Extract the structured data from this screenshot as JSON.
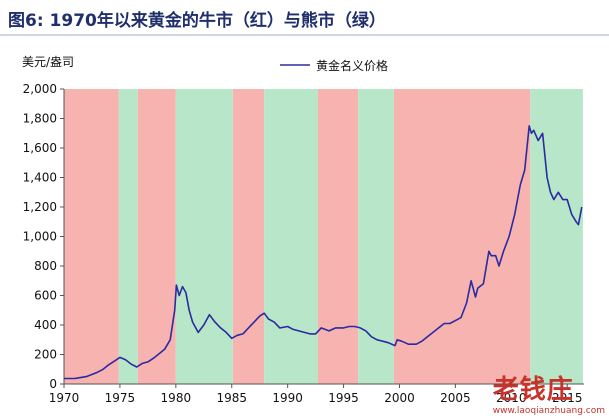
{
  "figure_title": "图6: 1970年以来黄金的牛市（红）与熊市（绿）",
  "watermark": {
    "name": "老钱庄",
    "url": "www.laoqianzhuang.com"
  },
  "colors": {
    "bull": "#f7b3b0",
    "bear": "#b8e6c9",
    "line": "#2b2ba0"
  },
  "chart_data": {
    "type": "line",
    "title": "",
    "ylabel": "美元/盎司",
    "xlabel": "",
    "xlim": [
      1970,
      2016.5
    ],
    "ylim": [
      0,
      2000
    ],
    "yticks": [
      "0",
      "200",
      "400",
      "600",
      "800",
      "1,000",
      "1,200",
      "1,400",
      "1,600",
      "1,800",
      "2,000"
    ],
    "xticks": [
      "1970",
      "1975",
      "1980",
      "1985",
      "1990",
      "1995",
      "2000",
      "2005",
      "2010",
      "2015"
    ],
    "legend": "top-center",
    "series": [
      {
        "name": "黄金名义价格",
        "x": [
          1970.0,
          1971.0,
          1972.0,
          1973.0,
          1973.5,
          1974.0,
          1974.6,
          1975.0,
          1975.5,
          1976.0,
          1976.5,
          1977.0,
          1977.5,
          1978.0,
          1978.5,
          1979.0,
          1979.5,
          1979.9,
          1980.05,
          1980.3,
          1980.6,
          1980.9,
          1981.2,
          1981.5,
          1982.0,
          1982.5,
          1983.0,
          1983.5,
          1984.0,
          1984.5,
          1985.0,
          1985.5,
          1986.0,
          1986.5,
          1987.0,
          1987.5,
          1987.9,
          1988.3,
          1988.8,
          1989.3,
          1990.0,
          1990.5,
          1991.0,
          1991.5,
          1992.0,
          1992.5,
          1993.0,
          1993.7,
          1994.3,
          1995.0,
          1995.5,
          1996.0,
          1996.5,
          1997.0,
          1997.5,
          1998.0,
          1998.5,
          1999.0,
          1999.6,
          1999.8,
          2000.2,
          2000.8,
          2001.5,
          2002.0,
          2002.5,
          2003.0,
          2003.5,
          2004.0,
          2004.5,
          2005.0,
          2005.5,
          2006.0,
          2006.4,
          2006.8,
          2007.0,
          2007.5,
          2008.0,
          2008.2,
          2008.6,
          2008.9,
          2009.3,
          2009.8,
          2010.3,
          2010.8,
          2011.2,
          2011.6,
          2011.8,
          2012.0,
          2012.4,
          2012.8,
          2013.2,
          2013.5,
          2013.8,
          2014.2,
          2014.6,
          2015.0,
          2015.4,
          2015.8,
          2016.0,
          2016.3
        ],
        "values": [
          37,
          38,
          50,
          80,
          100,
          130,
          160,
          180,
          165,
          135,
          115,
          140,
          150,
          175,
          205,
          235,
          300,
          500,
          670,
          600,
          660,
          620,
          500,
          420,
          350,
          400,
          470,
          420,
          380,
          350,
          310,
          330,
          340,
          380,
          420,
          460,
          480,
          440,
          420,
          380,
          390,
          370,
          360,
          350,
          340,
          340,
          380,
          360,
          380,
          380,
          390,
          390,
          380,
          360,
          320,
          300,
          290,
          280,
          260,
          300,
          290,
          270,
          270,
          290,
          320,
          350,
          380,
          410,
          410,
          430,
          450,
          550,
          700,
          590,
          650,
          680,
          900,
          870,
          870,
          800,
          900,
          1000,
          1150,
          1350,
          1450,
          1750,
          1700,
          1720,
          1650,
          1700,
          1400,
          1300,
          1250,
          1300,
          1250,
          1250,
          1150,
          1100,
          1080,
          1200
        ]
      }
    ],
    "regions": [
      {
        "start": 1970.0,
        "end": 1974.9,
        "type": "bull"
      },
      {
        "start": 1974.9,
        "end": 1976.6,
        "type": "bear"
      },
      {
        "start": 1976.6,
        "end": 1980.0,
        "type": "bull"
      },
      {
        "start": 1980.0,
        "end": 1985.1,
        "type": "bear"
      },
      {
        "start": 1985.1,
        "end": 1987.9,
        "type": "bull"
      },
      {
        "start": 1987.9,
        "end": 1992.7,
        "type": "bear"
      },
      {
        "start": 1992.7,
        "end": 1996.3,
        "type": "bull"
      },
      {
        "start": 1996.3,
        "end": 1999.5,
        "type": "bear"
      },
      {
        "start": 1999.5,
        "end": 2011.7,
        "type": "bull"
      },
      {
        "start": 2011.7,
        "end": 2016.4,
        "type": "bear"
      }
    ]
  }
}
